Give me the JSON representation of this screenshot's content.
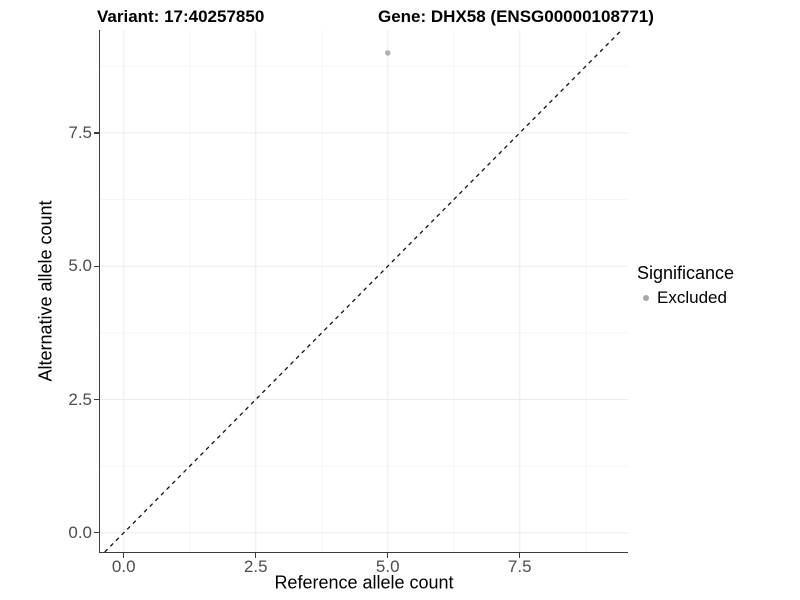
{
  "titles": {
    "variant": "Variant: 17:40257850",
    "gene": "Gene: DHX58 (ENSG00000108771)"
  },
  "chart_data": {
    "type": "scatter",
    "title_left": "Variant: 17:40257850",
    "title_right": "Gene: DHX58 (ENSG00000108771)",
    "xlabel": "Reference allele count",
    "ylabel": "Alternative allele count",
    "xlim": [
      -0.45,
      9.55
    ],
    "ylim": [
      -0.36,
      9.43
    ],
    "xticks": [
      0.0,
      2.5,
      5.0,
      7.5
    ],
    "yticks": [
      0.0,
      2.5,
      5.0,
      7.5
    ],
    "xtick_labels": [
      "0.0",
      "2.5",
      "5.0",
      "7.5"
    ],
    "ytick_labels": [
      "0.0",
      "2.5",
      "5.0",
      "7.5"
    ],
    "minor_xticks": [
      1.25,
      3.75,
      6.25,
      8.75
    ],
    "minor_yticks": [
      1.25,
      3.75,
      6.25,
      8.75
    ],
    "grid": true,
    "series": [
      {
        "name": "Excluded",
        "color": "#b3b3b3",
        "points": [
          {
            "x": 5,
            "y": 9
          }
        ]
      }
    ],
    "abline": {
      "slope": 1,
      "intercept": 0,
      "style": "dashed",
      "color": "#111111"
    },
    "legend": {
      "title": "Significance",
      "position": "right",
      "entries": [
        {
          "label": "Excluded",
          "color": "#a8a8a8"
        }
      ]
    },
    "colors": {
      "grid_major": "#ebebeb",
      "grid_minor": "#f5f5f5",
      "axis_line": "#3c3c3c",
      "tick_label": "#4d4d4d",
      "background": "#ffffff"
    }
  }
}
